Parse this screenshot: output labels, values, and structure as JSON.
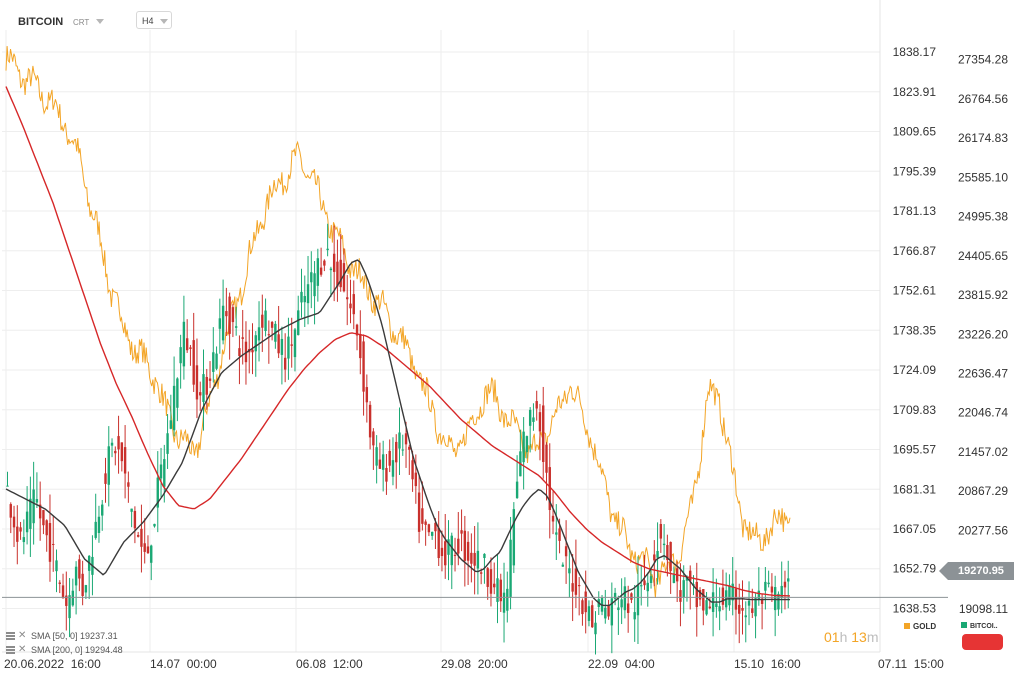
{
  "header": {
    "symbol": "BITCOIN",
    "chart_type": "CRT",
    "timeframe": "H4"
  },
  "indicators": [
    {
      "label": "SMA [50, 0]",
      "value": "19237.31",
      "color": "#3a3a3a"
    },
    {
      "label": "SMA [200, 0]",
      "value": "19294.48",
      "color": "#d62728"
    }
  ],
  "timer": {
    "hours": "01",
    "h": "h",
    "minutes": "13",
    "m": "m"
  },
  "instruments": [
    {
      "name": "GOLD",
      "color": "#f3a527"
    },
    {
      "name": "BITCOI..",
      "color": "#1aa874"
    }
  ],
  "current_price": "19270.95",
  "chart_data": {
    "type": "candlestick+line",
    "x_tick_labels": [
      "20.06.2022  16:00",
      "14.07  00:00",
      "06.08  12:00",
      "29.08  20:00",
      "22.09  04:00",
      "15.10  16:00",
      "07.11  15:00"
    ],
    "gold_axis": {
      "ticks": [
        1838.17,
        1823.91,
        1809.65,
        1795.39,
        1781.13,
        1766.87,
        1752.61,
        1738.35,
        1724.09,
        1709.83,
        1695.57,
        1681.31,
        1667.05,
        1652.79,
        1638.53
      ]
    },
    "bitcoin_axis": {
      "ticks": [
        27354.28,
        26764.56,
        26174.83,
        25585.1,
        24995.38,
        24405.65,
        23815.92,
        23226.2,
        22636.47,
        22046.74,
        21457.02,
        20867.29,
        20277.56,
        19687.84,
        19098.11
      ]
    },
    "bitcoin_range": [
      18450,
      27800
    ],
    "gold_range": [
      1622.92,
      1846.08
    ],
    "gold_path": [
      [
        0,
        1836
      ],
      [
        4,
        1830
      ],
      [
        8,
        1825
      ],
      [
        12,
        1819
      ],
      [
        16,
        1810
      ],
      [
        19,
        1798
      ],
      [
        21,
        1786
      ],
      [
        23,
        1776
      ],
      [
        25,
        1764
      ],
      [
        27,
        1752
      ],
      [
        30,
        1740
      ],
      [
        33,
        1731
      ],
      [
        35,
        1728
      ],
      [
        38,
        1722
      ],
      [
        40,
        1712
      ],
      [
        44,
        1700
      ],
      [
        48,
        1694
      ],
      [
        52,
        1712
      ],
      [
        55,
        1730
      ],
      [
        58,
        1744
      ],
      [
        62,
        1764
      ],
      [
        66,
        1782
      ],
      [
        69,
        1790
      ],
      [
        72,
        1796
      ],
      [
        75,
        1800
      ],
      [
        78,
        1792
      ],
      [
        81,
        1782
      ],
      [
        84,
        1772
      ],
      [
        88,
        1762
      ],
      [
        92,
        1754
      ],
      [
        96,
        1746
      ],
      [
        100,
        1737
      ],
      [
        104,
        1726
      ],
      [
        108,
        1712
      ],
      [
        111,
        1702
      ],
      [
        114,
        1694
      ],
      [
        118,
        1702
      ],
      [
        122,
        1716
      ],
      [
        125,
        1714
      ],
      [
        128,
        1706
      ],
      [
        131,
        1700
      ],
      [
        134,
        1694
      ],
      [
        138,
        1702
      ],
      [
        142,
        1712
      ],
      [
        144,
        1720
      ],
      [
        146,
        1712
      ],
      [
        149,
        1702
      ],
      [
        152,
        1686
      ],
      [
        155,
        1672
      ],
      [
        159,
        1660
      ],
      [
        163,
        1654
      ],
      [
        166,
        1649
      ],
      [
        169,
        1653
      ],
      [
        172,
        1660
      ],
      [
        175,
        1674
      ],
      [
        177,
        1694
      ],
      [
        179,
        1716
      ],
      [
        182,
        1714
      ],
      [
        185,
        1690
      ],
      [
        188,
        1670
      ],
      [
        191,
        1662
      ],
      [
        195,
        1667
      ],
      [
        198,
        1672
      ],
      [
        200,
        1670
      ]
    ],
    "btc_ohlc_range": [
      0,
      200
    ],
    "btc_path": [
      [
        0,
        21050
      ],
      [
        2,
        20600
      ],
      [
        4,
        20050
      ],
      [
        6,
        20400
      ],
      [
        8,
        20750
      ],
      [
        10,
        20300
      ],
      [
        12,
        20000
      ],
      [
        14,
        19550
      ],
      [
        16,
        19150
      ],
      [
        18,
        19700
      ],
      [
        20,
        19400
      ],
      [
        22,
        19900
      ],
      [
        24,
        20600
      ],
      [
        26,
        21200
      ],
      [
        28,
        21600
      ],
      [
        30,
        21300
      ],
      [
        32,
        20700
      ],
      [
        34,
        20200
      ],
      [
        36,
        19800
      ],
      [
        38,
        20400
      ],
      [
        40,
        21150
      ],
      [
        42,
        21800
      ],
      [
        44,
        22650
      ],
      [
        46,
        23300
      ],
      [
        48,
        22800
      ],
      [
        50,
        22250
      ],
      [
        52,
        22600
      ],
      [
        54,
        23050
      ],
      [
        56,
        23650
      ],
      [
        58,
        23400
      ],
      [
        60,
        23100
      ],
      [
        62,
        22850
      ],
      [
        64,
        23250
      ],
      [
        66,
        23550
      ],
      [
        68,
        23300
      ],
      [
        70,
        23050
      ],
      [
        72,
        22900
      ],
      [
        74,
        23250
      ],
      [
        76,
        23700
      ],
      [
        78,
        23950
      ],
      [
        80,
        24250
      ],
      [
        82,
        24500
      ],
      [
        84,
        24150
      ],
      [
        86,
        24050
      ],
      [
        88,
        23650
      ],
      [
        90,
        23300
      ],
      [
        92,
        22400
      ],
      [
        94,
        21450
      ],
      [
        96,
        21200
      ],
      [
        98,
        21250
      ],
      [
        100,
        21450
      ],
      [
        102,
        21650
      ],
      [
        104,
        21050
      ],
      [
        106,
        20350
      ],
      [
        108,
        20150
      ],
      [
        110,
        20250
      ],
      [
        112,
        19900
      ],
      [
        114,
        19950
      ],
      [
        116,
        20150
      ],
      [
        118,
        19950
      ],
      [
        120,
        19850
      ],
      [
        122,
        19750
      ],
      [
        124,
        19600
      ],
      [
        126,
        19300
      ],
      [
        128,
        19200
      ],
      [
        130,
        20550
      ],
      [
        132,
        21550
      ],
      [
        134,
        21900
      ],
      [
        136,
        22250
      ],
      [
        138,
        21250
      ],
      [
        140,
        20300
      ],
      [
        142,
        19850
      ],
      [
        144,
        19650
      ],
      [
        146,
        19450
      ],
      [
        148,
        19200
      ],
      [
        150,
        18850
      ],
      [
        152,
        19250
      ],
      [
        154,
        19000
      ],
      [
        156,
        19250
      ],
      [
        158,
        19300
      ],
      [
        160,
        19100
      ],
      [
        162,
        19300
      ],
      [
        164,
        19550
      ],
      [
        166,
        20050
      ],
      [
        168,
        20300
      ],
      [
        170,
        19700
      ],
      [
        172,
        19350
      ],
      [
        174,
        19450
      ],
      [
        176,
        19250
      ],
      [
        178,
        19150
      ],
      [
        180,
        19100
      ],
      [
        182,
        19300
      ],
      [
        184,
        19200
      ],
      [
        186,
        19250
      ],
      [
        188,
        19150
      ],
      [
        190,
        19050
      ],
      [
        192,
        19200
      ],
      [
        194,
        19300
      ],
      [
        196,
        19250
      ],
      [
        198,
        19300
      ],
      [
        200,
        19350
      ]
    ],
    "sma50_path": [
      [
        0,
        20900
      ],
      [
        10,
        20600
      ],
      [
        15,
        20350
      ],
      [
        20,
        19850
      ],
      [
        25,
        19600
      ],
      [
        30,
        20100
      ],
      [
        35,
        20400
      ],
      [
        40,
        20800
      ],
      [
        45,
        21300
      ],
      [
        50,
        22100
      ],
      [
        55,
        22650
      ],
      [
        60,
        22900
      ],
      [
        65,
        23100
      ],
      [
        70,
        23300
      ],
      [
        75,
        23450
      ],
      [
        80,
        23550
      ],
      [
        85,
        24000
      ],
      [
        88,
        24300
      ],
      [
        90,
        24350
      ],
      [
        92,
        24100
      ],
      [
        94,
        23750
      ],
      [
        96,
        23350
      ],
      [
        98,
        22850
      ],
      [
        100,
        22350
      ],
      [
        102,
        21850
      ],
      [
        104,
        21350
      ],
      [
        106,
        21000
      ],
      [
        108,
        20650
      ],
      [
        110,
        20350
      ],
      [
        112,
        20150
      ],
      [
        114,
        20000
      ],
      [
        116,
        19850
      ],
      [
        118,
        19750
      ],
      [
        120,
        19650
      ],
      [
        122,
        19700
      ],
      [
        124,
        19850
      ],
      [
        126,
        19950
      ],
      [
        128,
        20200
      ],
      [
        130,
        20450
      ],
      [
        132,
        20650
      ],
      [
        134,
        20800
      ],
      [
        136,
        20900
      ],
      [
        138,
        20800
      ],
      [
        140,
        20550
      ],
      [
        142,
        20250
      ],
      [
        144,
        19950
      ],
      [
        146,
        19650
      ],
      [
        148,
        19450
      ],
      [
        150,
        19250
      ],
      [
        152,
        19150
      ],
      [
        154,
        19150
      ],
      [
        156,
        19250
      ],
      [
        158,
        19350
      ],
      [
        160,
        19400
      ],
      [
        162,
        19500
      ],
      [
        164,
        19650
      ],
      [
        166,
        19850
      ],
      [
        168,
        19900
      ],
      [
        170,
        19800
      ],
      [
        172,
        19700
      ],
      [
        174,
        19550
      ],
      [
        176,
        19400
      ],
      [
        178,
        19300
      ],
      [
        180,
        19200
      ],
      [
        182,
        19200
      ],
      [
        184,
        19250
      ],
      [
        186,
        19250
      ],
      [
        188,
        19250
      ],
      [
        190,
        19237
      ],
      [
        192,
        19237
      ],
      [
        194,
        19240
      ],
      [
        196,
        19240
      ],
      [
        198,
        19237
      ],
      [
        200,
        19237
      ]
    ],
    "sma200_path": [
      [
        0,
        26950
      ],
      [
        4,
        26400
      ],
      [
        8,
        25800
      ],
      [
        12,
        25200
      ],
      [
        16,
        24500
      ],
      [
        20,
        23800
      ],
      [
        24,
        23100
      ],
      [
        28,
        22500
      ],
      [
        32,
        22000
      ],
      [
        36,
        21450
      ],
      [
        40,
        20950
      ],
      [
        44,
        20650
      ],
      [
        48,
        20600
      ],
      [
        52,
        20750
      ],
      [
        56,
        21050
      ],
      [
        60,
        21350
      ],
      [
        64,
        21700
      ],
      [
        68,
        22050
      ],
      [
        72,
        22400
      ],
      [
        76,
        22700
      ],
      [
        80,
        22950
      ],
      [
        84,
        23150
      ],
      [
        88,
        23250
      ],
      [
        92,
        23200
      ],
      [
        96,
        23050
      ],
      [
        100,
        22850
      ],
      [
        104,
        22650
      ],
      [
        108,
        22450
      ],
      [
        112,
        22200
      ],
      [
        116,
        21950
      ],
      [
        120,
        21750
      ],
      [
        124,
        21550
      ],
      [
        128,
        21400
      ],
      [
        132,
        21250
      ],
      [
        136,
        21100
      ],
      [
        140,
        20850
      ],
      [
        144,
        20550
      ],
      [
        148,
        20300
      ],
      [
        152,
        20100
      ],
      [
        156,
        19950
      ],
      [
        160,
        19800
      ],
      [
        164,
        19700
      ],
      [
        168,
        19650
      ],
      [
        172,
        19600
      ],
      [
        176,
        19550
      ],
      [
        180,
        19500
      ],
      [
        184,
        19450
      ],
      [
        188,
        19380
      ],
      [
        192,
        19330
      ],
      [
        196,
        19300
      ],
      [
        200,
        19294
      ]
    ]
  }
}
